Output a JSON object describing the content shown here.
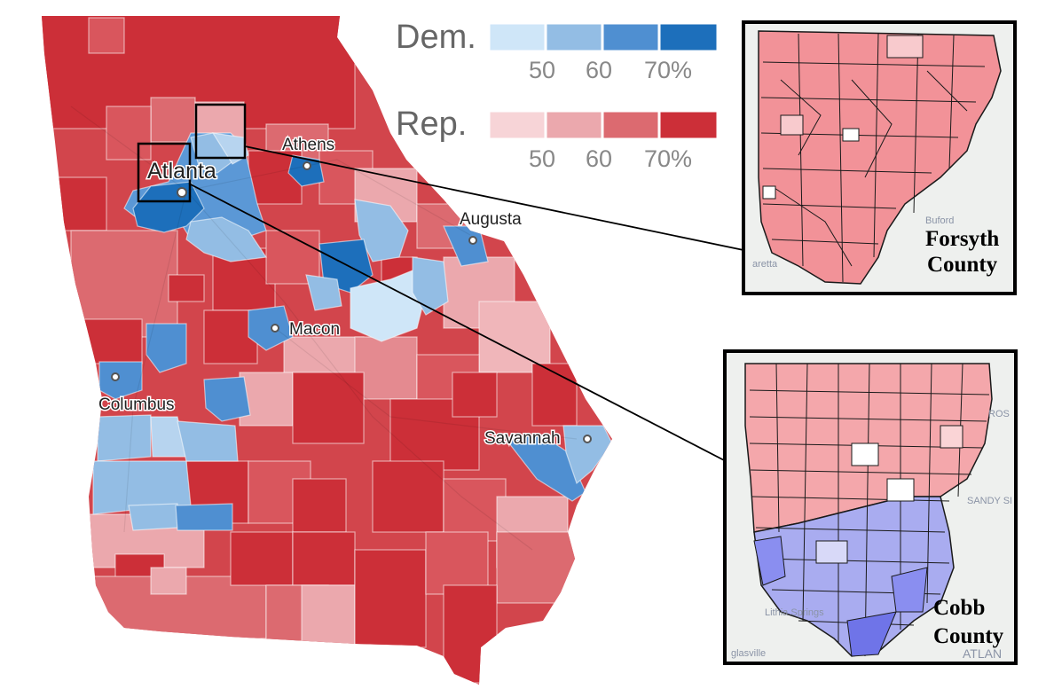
{
  "legend": {
    "dem": {
      "title": "Dem.",
      "ticks": [
        "50",
        "60",
        "70%"
      ],
      "colors": [
        "#cfe6f8",
        "#93bde4",
        "#4f8fd1",
        "#1d6fbb"
      ]
    },
    "rep": {
      "title": "Rep.",
      "ticks": [
        "50",
        "60",
        "70%"
      ],
      "colors": [
        "#f7d4d7",
        "#eba8ad",
        "#dc6a70",
        "#cc2f38"
      ]
    }
  },
  "cities": {
    "atlanta": "Atlanta",
    "athens": "Athens",
    "augusta": "Augusta",
    "macon": "Macon",
    "columbus": "Columbus",
    "savannah": "Savannah"
  },
  "insets": {
    "forsyth": {
      "label_line1": "Forsyth",
      "label_line2": "County",
      "faint_labels": [
        "Buford",
        "aretta"
      ]
    },
    "cobb": {
      "label_line1": "Cobb",
      "label_line2": "County",
      "faint_labels": [
        "Lithia Springs",
        "glasville",
        "SANDY SP",
        "ATLAN",
        "ROS"
      ]
    }
  },
  "colors": {
    "rep_dark": "#cc2f38",
    "rep_mid": "#dc6a70",
    "rep_light": "#eba8ad",
    "dem_light": "#93bde4",
    "dem_dark": "#1d6fbb",
    "inset_rep": "#f08a8f",
    "inset_dem": "#6f74e8"
  }
}
